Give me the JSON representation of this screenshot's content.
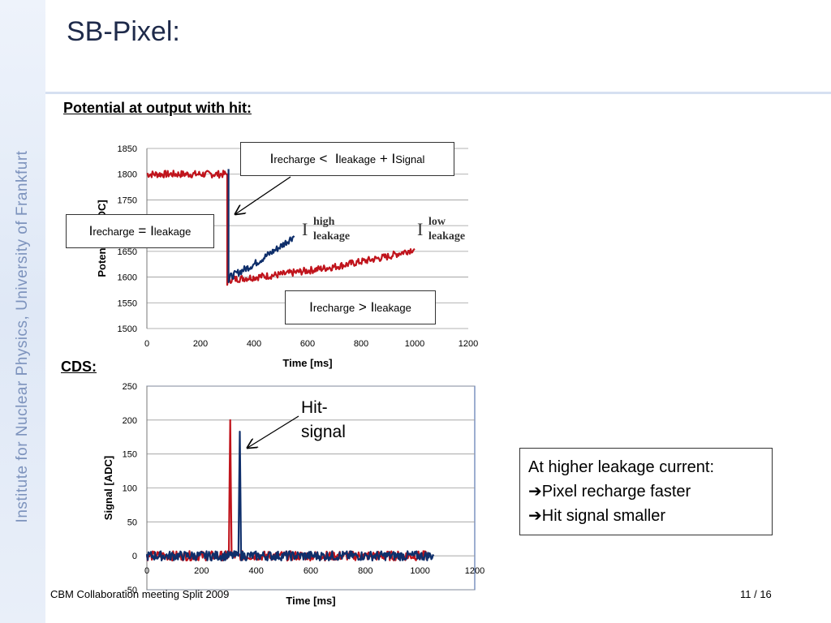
{
  "sidebar": {
    "text": "Institute for Nuclear Physics, University of Frankfurt"
  },
  "slide": {
    "title": "SB-Pixel:",
    "heading1": "Potential at output with hit:",
    "heading2": "CDS:"
  },
  "annotations": {
    "box1": {
      "I": "I",
      "recharge": "recharge",
      "lt": "<",
      "leakage": "leakage",
      "plus": "+ I",
      "signal": "Signal"
    },
    "box2": {
      "I": "I",
      "recharge": "recharge",
      "eq": "= I",
      "leakage": "leakage"
    },
    "box3": {
      "I": "I",
      "recharge": "recharge",
      "gt": "> I",
      "leakage": "leakage"
    },
    "high_label": {
      "I": "I",
      "sup": "high",
      "sub": "leakage"
    },
    "low_label": {
      "I": "I",
      "sup": "low",
      "sub": "leakage"
    },
    "hit_signal": "Hit-signal",
    "conclusion": {
      "line1": "At higher leakage current:",
      "line2": "Pixel recharge faster",
      "line3": "Hit signal smaller"
    }
  },
  "footer": {
    "left": "CBM Collaboration meeting Split 2009",
    "right": "11 / 16"
  },
  "colors": {
    "red": "#c0141c",
    "blue": "#0f2f6b",
    "sidebar_text": "#7d93bd"
  },
  "chart_data": [
    {
      "type": "line",
      "title": "",
      "xlabel": "Time [ms]",
      "ylabel": "Potential [ADC]",
      "xlim": [
        0,
        1200
      ],
      "ylim": [
        1500,
        1850
      ],
      "xticks": [
        0,
        200,
        400,
        600,
        800,
        1000,
        1200
      ],
      "yticks": [
        1500,
        1550,
        1600,
        1650,
        1700,
        1750,
        1800,
        1850
      ],
      "grid": "horizontal",
      "series": [
        {
          "color": "red",
          "x": [
            0,
            300,
            300,
            310,
            500,
            700,
            900,
            1000
          ],
          "values": [
            1800,
            1800,
            1590,
            1595,
            1605,
            1620,
            1640,
            1655
          ]
        },
        {
          "color": "blue",
          "x": [
            305,
            305,
            310,
            400,
            500,
            550
          ],
          "values": [
            1810,
            1590,
            1600,
            1625,
            1660,
            1680
          ]
        }
      ]
    },
    {
      "type": "line",
      "title": "",
      "xlabel": "Time [ms]",
      "ylabel": "Signal [ADC]",
      "xlim": [
        0,
        1200
      ],
      "ylim": [
        -50,
        250
      ],
      "xticks": [
        0,
        200,
        400,
        600,
        800,
        1000,
        1200
      ],
      "yticks": [
        -50,
        0,
        50,
        100,
        150,
        200,
        250
      ],
      "grid": "horizontal",
      "series": [
        {
          "color": "red",
          "x": [
            0,
            300,
            305,
            310,
            1030
          ],
          "values": [
            0,
            0,
            200,
            0,
            0
          ]
        },
        {
          "color": "blue",
          "x": [
            0,
            335,
            340,
            345,
            1050
          ],
          "values": [
            0,
            0,
            183,
            0,
            0
          ]
        }
      ]
    }
  ]
}
